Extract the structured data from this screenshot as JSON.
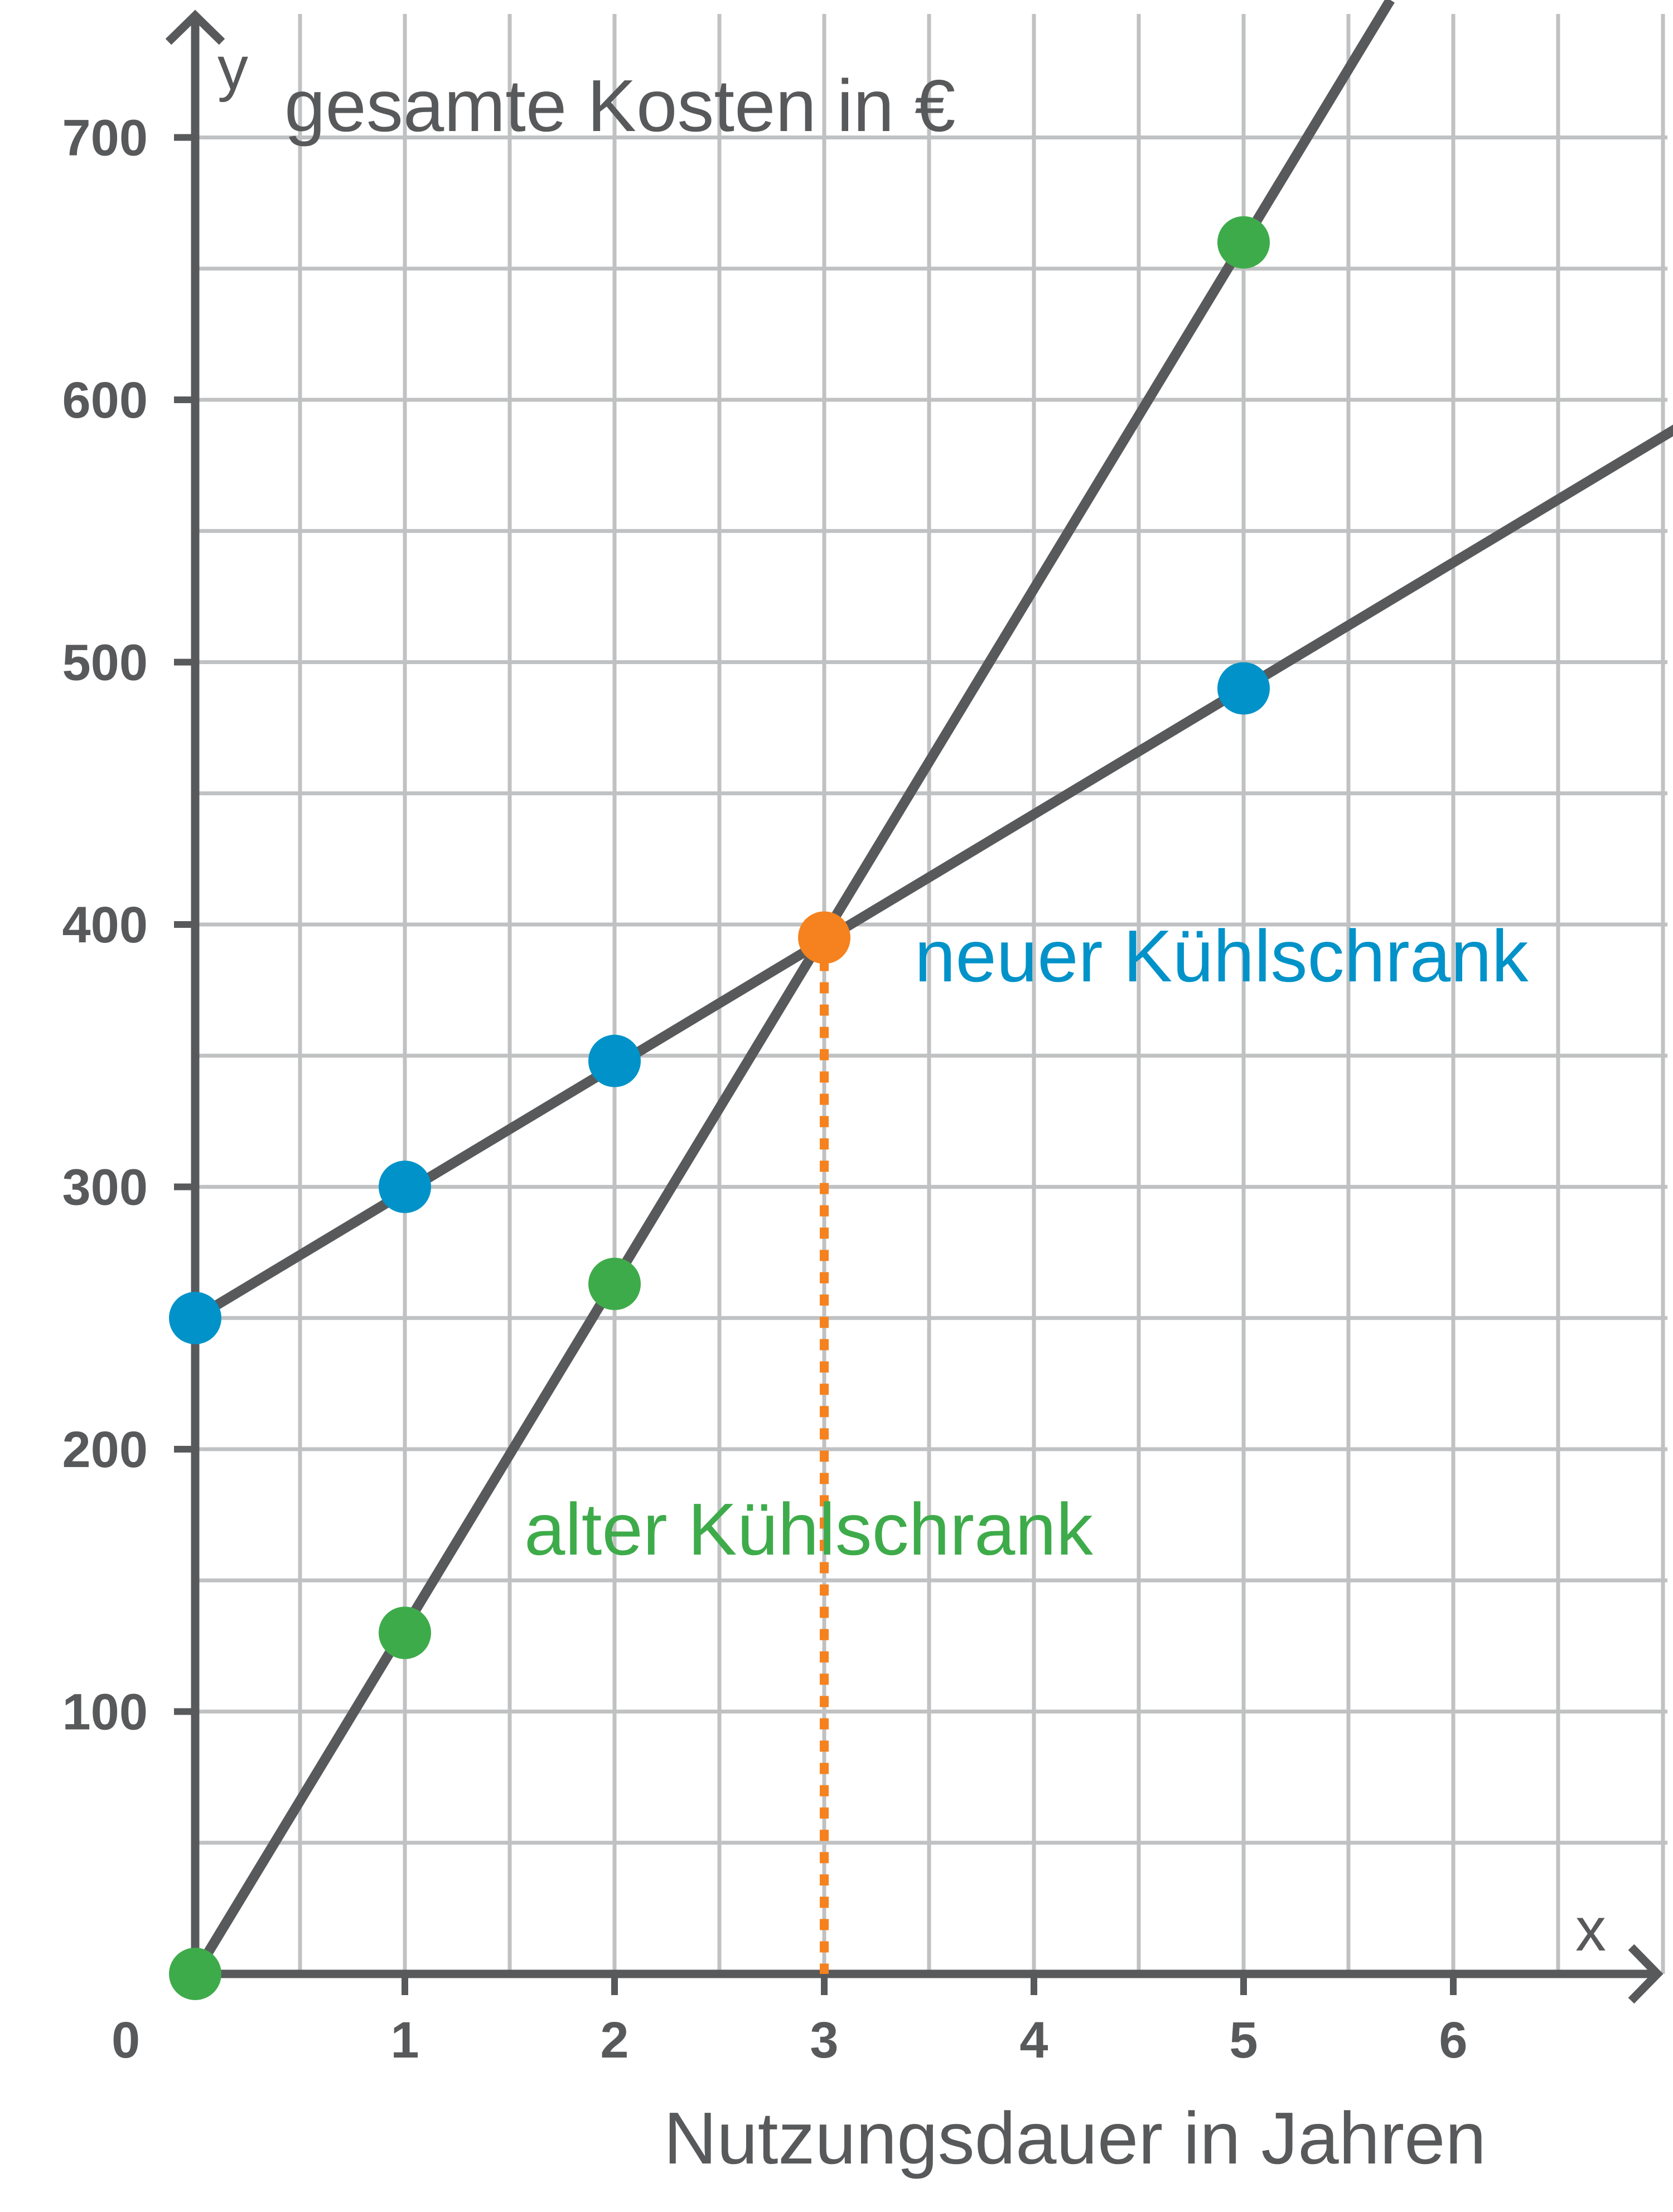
{
  "chart_data": {
    "type": "line",
    "y_axis_letter": "y",
    "x_axis_letter": "x",
    "ylabel": "gesamte Kosten in  €",
    "xlabel": "Nutzungsdauer in Jahren",
    "origin_label": "0",
    "xlim": [
      0,
      7
    ],
    "ylim": [
      0,
      750
    ],
    "x_ticks": [
      1,
      2,
      3,
      4,
      5,
      6
    ],
    "x_tick_labels": [
      "1",
      "2",
      "3",
      "4",
      "5",
      "6"
    ],
    "y_ticks": [
      100,
      200,
      300,
      400,
      500,
      600,
      700
    ],
    "y_tick_labels": [
      "100",
      "200",
      "300",
      "400",
      "500",
      "600",
      "700"
    ],
    "grid": true,
    "grid_x_step": 0.5,
    "grid_y_step": 50,
    "series": [
      {
        "name": "neuer Kühlschrank",
        "color": "#0092c8",
        "line_color": "#58595b",
        "line": {
          "intercept": 250,
          "slope": 48
        },
        "points": [
          {
            "x": 0,
            "y": 250
          },
          {
            "x": 1,
            "y": 300
          },
          {
            "x": 2,
            "y": 348
          },
          {
            "x": 5,
            "y": 490
          }
        ]
      },
      {
        "name": "alter Kühlschrank",
        "color": "#3eab4a",
        "line_color": "#58595b",
        "line": {
          "intercept": 0,
          "slope": 132
        },
        "points": [
          {
            "x": 0,
            "y": 0
          },
          {
            "x": 1,
            "y": 130
          },
          {
            "x": 2,
            "y": 263
          },
          {
            "x": 5,
            "y": 660
          }
        ]
      }
    ],
    "intersection": {
      "x": 3,
      "y": 395,
      "color": "#f5821f",
      "drop_line": "dotted"
    },
    "colors": {
      "axis": "#58595b",
      "grid": "#c0c1c2",
      "neuer": "#0092c8",
      "alter": "#3eab4a",
      "intersection": "#f5821f"
    }
  }
}
